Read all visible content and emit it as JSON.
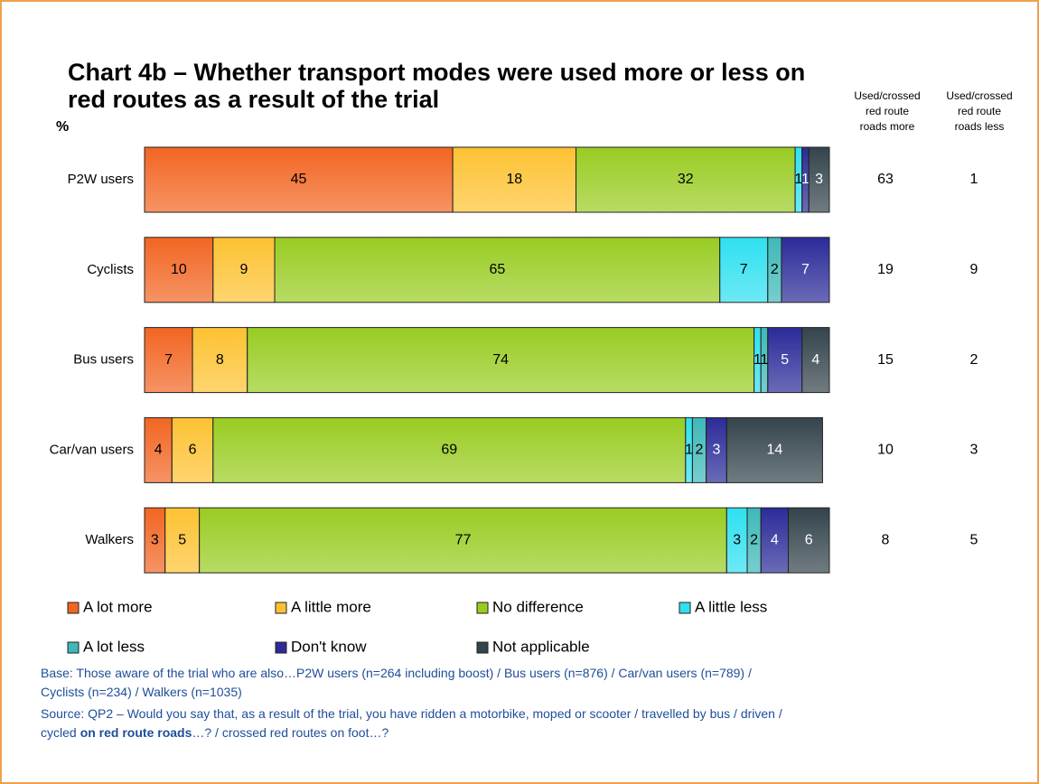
{
  "chart_data": {
    "type": "stacked_bar_horizontal",
    "title": [
      "Chart 4b – Whether transport modes were used more or less on",
      "red routes as a result of the trial"
    ],
    "unit_label": "%",
    "categories": [
      "P2W users",
      "Cyclists",
      "Bus users",
      "Car/van users",
      "Walkers"
    ],
    "xlim": [
      0,
      100
    ],
    "series": [
      {
        "name": "A lot more",
        "color": "#f26522",
        "label_color": "#000000",
        "values": [
          45,
          10,
          7,
          4,
          3
        ]
      },
      {
        "name": "A little more",
        "color": "#fdc232",
        "label_color": "#000000",
        "values": [
          18,
          9,
          8,
          6,
          5
        ]
      },
      {
        "name": "No difference",
        "color": "#99cc22",
        "label_color": "#000000",
        "values": [
          32,
          65,
          74,
          69,
          77
        ]
      },
      {
        "name": "A little less",
        "color": "#2ee0f0",
        "label_color": "#000000",
        "values": [
          1,
          7,
          1,
          1,
          3
        ]
      },
      {
        "name": "A lot less",
        "color": "#3fb8b8",
        "label_color": "#000000",
        "values": [
          null,
          2,
          1,
          2,
          2
        ]
      },
      {
        "name": "Don't know",
        "color": "#2b2b99",
        "label_color": "#ffffff",
        "values": [
          1,
          7,
          5,
          3,
          4
        ]
      },
      {
        "name": "Not applicable",
        "color": "#34444c",
        "label_color": "#ffffff",
        "values": [
          3,
          null,
          4,
          14,
          6
        ]
      }
    ],
    "side_columns": [
      {
        "header": [
          "Used/crossed",
          "red route",
          "roads more"
        ],
        "values": [
          63,
          19,
          15,
          10,
          8
        ]
      },
      {
        "header": [
          "Used/crossed",
          "red route",
          "roads less"
        ],
        "values": [
          1,
          9,
          2,
          3,
          5
        ]
      }
    ],
    "base": [
      "Base: Those aware of the trial who are also…P2W users (n=264 including boost) / Bus users (n=876) / Car/van users (n=789) /",
      "Cyclists (n=234) / Walkers (n=1035)"
    ],
    "source": [
      "Source: QP2 – Would you say that, as a result of the trial, you have ridden a motorbike, moped or scooter / travelled by bus / driven /",
      "cycled",
      "on red route roads",
      "…? / crossed red routes on foot…?"
    ]
  }
}
